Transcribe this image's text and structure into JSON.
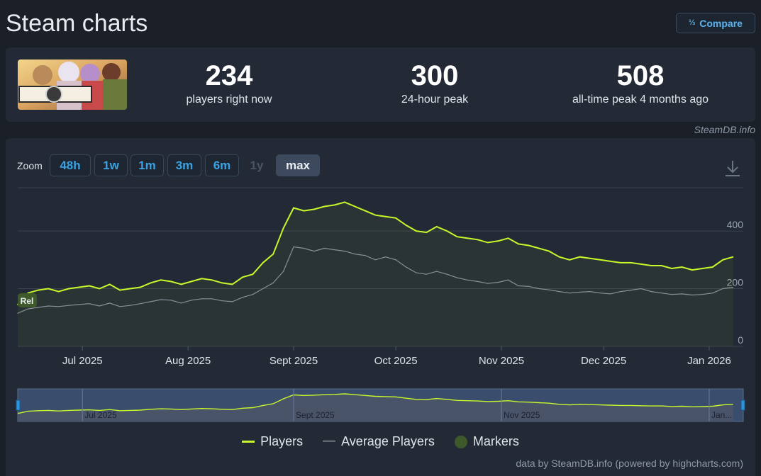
{
  "header": {
    "title": "Steam charts",
    "compare_label": "Compare",
    "compare_icon": "fraction-icon"
  },
  "stats": [
    {
      "value": "234",
      "label": "players right now"
    },
    {
      "value": "300",
      "label": "24-hour peak"
    },
    {
      "value": "508",
      "label": "all-time peak 4 months ago"
    }
  ],
  "credit": "SteamDB.info",
  "zoom": {
    "label": "Zoom",
    "buttons": [
      {
        "label": "48h",
        "state": "normal"
      },
      {
        "label": "1w",
        "state": "normal"
      },
      {
        "label": "1m",
        "state": "normal"
      },
      {
        "label": "3m",
        "state": "normal"
      },
      {
        "label": "6m",
        "state": "normal"
      },
      {
        "label": "1y",
        "state": "disabled"
      },
      {
        "label": "max",
        "state": "active"
      }
    ]
  },
  "chart_data": {
    "type": "line",
    "x_ticks": [
      "Jul 2025",
      "Aug 2025",
      "Sept 2025",
      "Oct 2025",
      "Nov 2025",
      "Dec 2025",
      "Jan 2026"
    ],
    "y_ticks": [
      "0",
      "200",
      "400"
    ],
    "ylim": [
      0,
      550
    ],
    "navigator_labels": [
      "Jul 2025",
      "Sept 2025",
      "Nov 2025",
      "Jan..."
    ],
    "marker_label": "Rel",
    "colors": {
      "players": "#c6f82b",
      "average": "#8a8f98",
      "marker": "#3e5a2a"
    },
    "series": [
      {
        "name": "Players",
        "x": [
          "2025-06-12",
          "2025-06-15",
          "2025-06-18",
          "2025-06-21",
          "2025-06-24",
          "2025-06-27",
          "2025-06-30",
          "2025-07-03",
          "2025-07-06",
          "2025-07-09",
          "2025-07-12",
          "2025-07-15",
          "2025-07-18",
          "2025-07-21",
          "2025-07-24",
          "2025-07-27",
          "2025-07-30",
          "2025-08-02",
          "2025-08-05",
          "2025-08-08",
          "2025-08-11",
          "2025-08-14",
          "2025-08-17",
          "2025-08-20",
          "2025-08-23",
          "2025-08-26",
          "2025-08-29",
          "2025-09-01",
          "2025-09-04",
          "2025-09-07",
          "2025-09-10",
          "2025-09-13",
          "2025-09-16",
          "2025-09-19",
          "2025-09-22",
          "2025-09-25",
          "2025-09-28",
          "2025-10-01",
          "2025-10-04",
          "2025-10-07",
          "2025-10-10",
          "2025-10-13",
          "2025-10-16",
          "2025-10-19",
          "2025-10-22",
          "2025-10-25",
          "2025-10-28",
          "2025-10-31",
          "2025-11-03",
          "2025-11-06",
          "2025-11-09",
          "2025-11-12",
          "2025-11-15",
          "2025-11-18",
          "2025-11-21",
          "2025-11-24",
          "2025-11-27",
          "2025-11-30",
          "2025-12-03",
          "2025-12-06",
          "2025-12-09",
          "2025-12-12",
          "2025-12-15",
          "2025-12-18",
          "2025-12-21",
          "2025-12-24",
          "2025-12-27",
          "2025-12-30",
          "2026-01-02",
          "2026-01-05",
          "2026-01-08"
        ],
        "values": [
          145,
          185,
          195,
          200,
          190,
          200,
          205,
          210,
          200,
          215,
          195,
          200,
          205,
          220,
          230,
          225,
          215,
          225,
          235,
          230,
          220,
          215,
          240,
          250,
          290,
          320,
          410,
          480,
          470,
          475,
          485,
          490,
          500,
          485,
          470,
          455,
          450,
          445,
          420,
          400,
          395,
          415,
          400,
          380,
          375,
          370,
          360,
          365,
          375,
          355,
          350,
          340,
          330,
          310,
          300,
          310,
          305,
          300,
          295,
          290,
          290,
          285,
          280,
          280,
          270,
          275,
          265,
          270,
          275,
          300,
          310
        ]
      },
      {
        "name": "Average Players",
        "x": [
          "2025-06-12",
          "2025-06-15",
          "2025-06-18",
          "2025-06-21",
          "2025-06-24",
          "2025-06-27",
          "2025-06-30",
          "2025-07-03",
          "2025-07-06",
          "2025-07-09",
          "2025-07-12",
          "2025-07-15",
          "2025-07-18",
          "2025-07-21",
          "2025-07-24",
          "2025-07-27",
          "2025-07-30",
          "2025-08-02",
          "2025-08-05",
          "2025-08-08",
          "2025-08-11",
          "2025-08-14",
          "2025-08-17",
          "2025-08-20",
          "2025-08-23",
          "2025-08-26",
          "2025-08-29",
          "2025-09-01",
          "2025-09-04",
          "2025-09-07",
          "2025-09-10",
          "2025-09-13",
          "2025-09-16",
          "2025-09-19",
          "2025-09-22",
          "2025-09-25",
          "2025-09-28",
          "2025-10-01",
          "2025-10-04",
          "2025-10-07",
          "2025-10-10",
          "2025-10-13",
          "2025-10-16",
          "2025-10-19",
          "2025-10-22",
          "2025-10-25",
          "2025-10-28",
          "2025-10-31",
          "2025-11-03",
          "2025-11-06",
          "2025-11-09",
          "2025-11-12",
          "2025-11-15",
          "2025-11-18",
          "2025-11-21",
          "2025-11-24",
          "2025-11-27",
          "2025-11-30",
          "2025-12-03",
          "2025-12-06",
          "2025-12-09",
          "2025-12-12",
          "2025-12-15",
          "2025-12-18",
          "2025-12-21",
          "2025-12-24",
          "2025-12-27",
          "2025-12-30",
          "2026-01-02",
          "2026-01-05",
          "2026-01-08"
        ],
        "values": [
          115,
          130,
          135,
          140,
          138,
          142,
          145,
          148,
          140,
          150,
          138,
          142,
          148,
          155,
          162,
          160,
          150,
          160,
          165,
          165,
          158,
          155,
          170,
          180,
          200,
          220,
          260,
          345,
          340,
          330,
          340,
          335,
          330,
          320,
          315,
          300,
          310,
          300,
          275,
          255,
          250,
          260,
          250,
          238,
          230,
          225,
          218,
          222,
          230,
          210,
          208,
          200,
          196,
          190,
          185,
          188,
          190,
          185,
          182,
          190,
          195,
          200,
          190,
          185,
          180,
          182,
          178,
          180,
          185,
          200,
          205
        ]
      }
    ]
  },
  "legend": [
    "Players",
    "Average Players",
    "Markers"
  ],
  "footer": "data by SteamDB.info (powered by highcharts.com)"
}
